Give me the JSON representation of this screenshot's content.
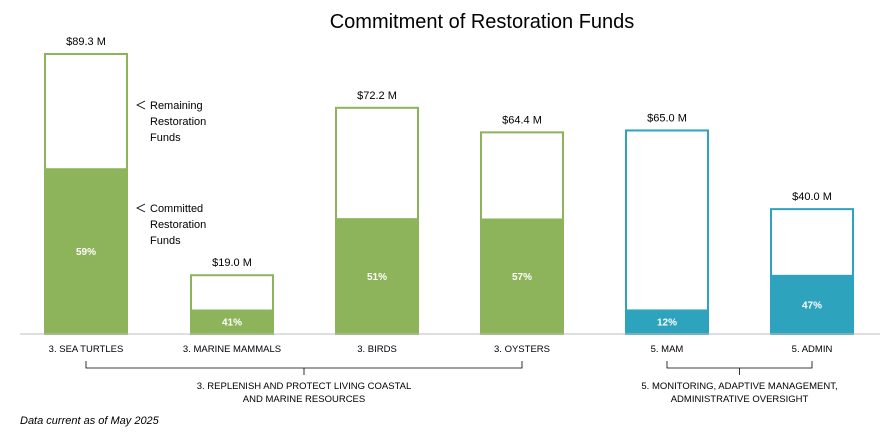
{
  "chart_data": {
    "type": "bar",
    "title": "Commitment of Restoration Funds",
    "categories": [
      "3. SEA TURTLES",
      "3. MARINE MAMMALS",
      "3. BIRDS",
      "3. OYSTERS",
      "5. MAM",
      "5. ADMIN"
    ],
    "totals": [
      89.3,
      19.0,
      72.2,
      64.4,
      65.0,
      40.0
    ],
    "total_labels": [
      "$89.3 M",
      "$19.0 M",
      "$72.2 M",
      "$64.4 M",
      "$65.0 M",
      "$40.0 M"
    ],
    "committed_pct": [
      59,
      41,
      51,
      57,
      12,
      47
    ],
    "committed_labels": [
      "59%",
      "41%",
      "51%",
      "57%",
      "12%",
      "47%"
    ],
    "series": [
      {
        "name": "Committed Restoration Funds"
      },
      {
        "name": "Remaining Restoration Funds"
      }
    ],
    "groups": [
      {
        "label_lines": [
          "3. REPLENISH AND PROTECT LIVING COASTAL",
          "AND MARINE RESOURCES"
        ],
        "color": "#8db45a"
      },
      {
        "label_lines": [
          "5. MONITORING, ADAPTIVE MANAGEMENT,",
          "ADMINISTRATIVE OVERSIGHT"
        ],
        "color": "#2ea3bd"
      }
    ],
    "bar_group": [
      0,
      0,
      0,
      0,
      1,
      1
    ],
    "ylim": [
      0,
      89.3
    ],
    "legend": {
      "remaining_lines": [
        "Remaining",
        "Restoration",
        "Funds"
      ],
      "committed_lines": [
        "Committed",
        "Restoration",
        "Funds"
      ]
    },
    "footnote": "Data current as of May 2025"
  }
}
